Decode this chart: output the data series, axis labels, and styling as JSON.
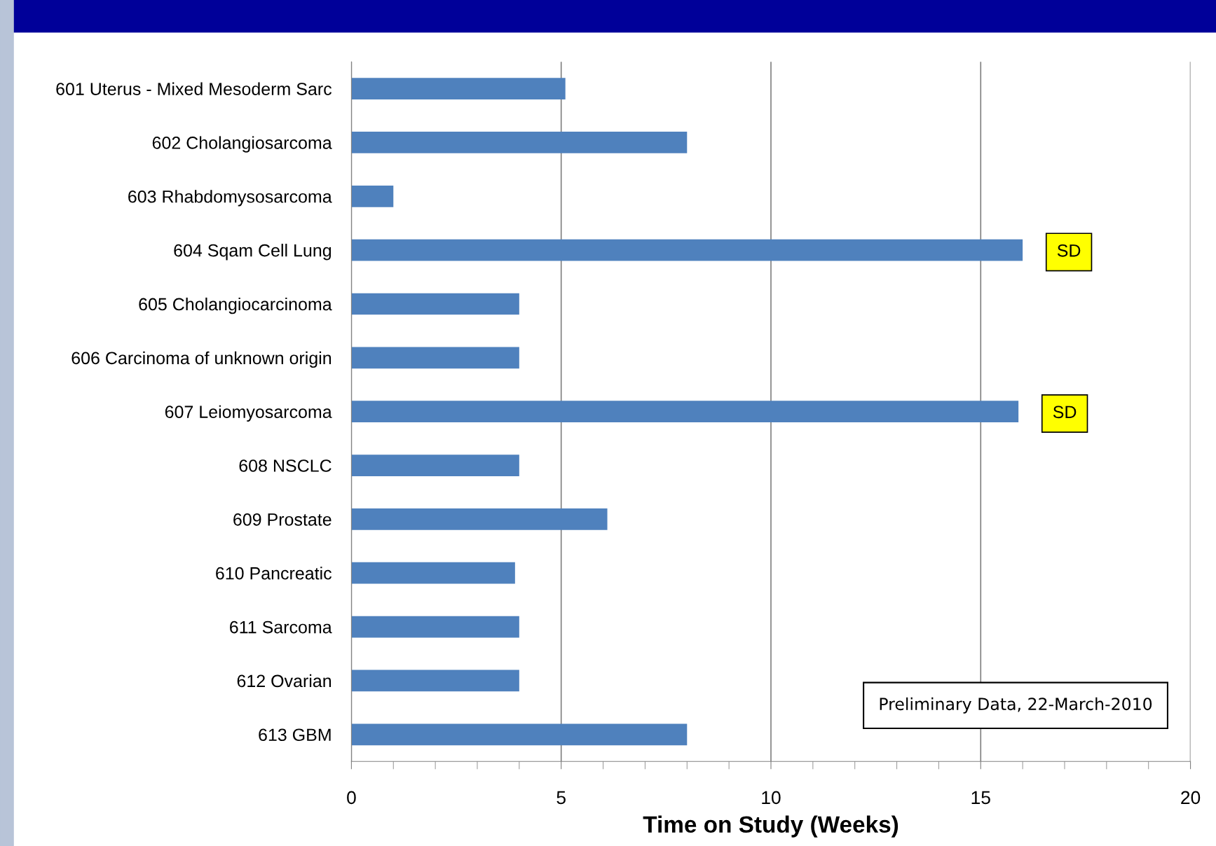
{
  "chart_data": {
    "type": "bar",
    "orientation": "horizontal",
    "xlabel": "Time on Study (Weeks)",
    "categories": [
      "601 Uterus - Mixed Mesoderm Sarc",
      "602 Cholangiosarcoma",
      "603 Rhabdomysosarcoma",
      "604 Sqam Cell Lung",
      "605 Cholangiocarcinoma",
      "606 Carcinoma of unknown origin",
      "607 Leiomyosarcoma",
      "608 NSCLC",
      "609 Prostate",
      "610 Pancreatic",
      "611 Sarcoma",
      "612 Ovarian",
      "613 GBM"
    ],
    "values": [
      5.1,
      8.0,
      1.0,
      16.0,
      4.0,
      4.0,
      15.9,
      4.0,
      6.1,
      3.9,
      4.0,
      4.0,
      8.0
    ],
    "color": "#4f81bd",
    "xlim": [
      0,
      20
    ],
    "xticks": [
      0,
      5,
      10,
      15,
      20
    ],
    "grid": "x",
    "annotations": [
      {
        "text": "SD",
        "x": 16.0,
        "y": "604 Sqam Cell Lung"
      },
      {
        "text": "SD",
        "x": 15.9,
        "y": "607 Leiomyosarcoma"
      },
      "Preliminary Data, 22-March-2010"
    ]
  }
}
